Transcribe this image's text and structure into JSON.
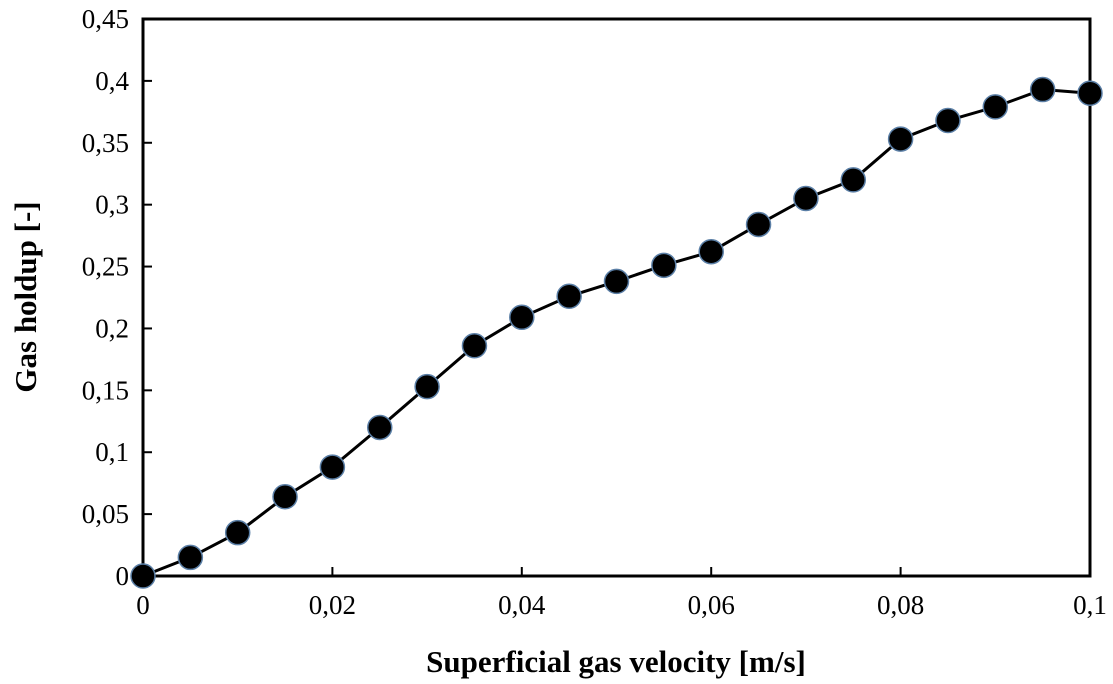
{
  "chart_data": {
    "type": "line",
    "title": "",
    "xlabel": "Superficial gas velocity [m/s]",
    "ylabel": "Gas holdup [-]",
    "xlim": [
      0,
      0.1
    ],
    "ylim": [
      0,
      0.45
    ],
    "x_ticks": [
      0,
      0.02,
      0.04,
      0.06,
      0.08,
      0.1
    ],
    "x_tick_labels": [
      "0",
      "0,02",
      "0,04",
      "0,06",
      "0,08",
      "0,1"
    ],
    "y_ticks": [
      0,
      0.05,
      0.1,
      0.15,
      0.2,
      0.25,
      0.3,
      0.35,
      0.4,
      0.45
    ],
    "y_tick_labels": [
      "0",
      "0,05",
      "0,1",
      "0,15",
      "0,2",
      "0,25",
      "0,3",
      "0,35",
      "0,4",
      "0,45"
    ],
    "grid": false,
    "legend": "none",
    "colors": {
      "line": "#000000",
      "marker_fill": "#000000",
      "marker_edge": "#5b7fa6"
    },
    "series": [
      {
        "x": [
          0,
          0.005,
          0.01,
          0.015,
          0.02,
          0.025,
          0.03,
          0.035,
          0.04,
          0.045,
          0.05,
          0.055,
          0.06,
          0.065,
          0.07,
          0.075,
          0.08,
          0.085,
          0.09,
          0.095,
          0.1
        ],
        "y": [
          0,
          0.015,
          0.035,
          0.064,
          0.088,
          0.12,
          0.153,
          0.186,
          0.209,
          0.226,
          0.238,
          0.251,
          0.262,
          0.284,
          0.305,
          0.32,
          0.353,
          0.368,
          0.379,
          0.393,
          0.39
        ]
      }
    ]
  }
}
